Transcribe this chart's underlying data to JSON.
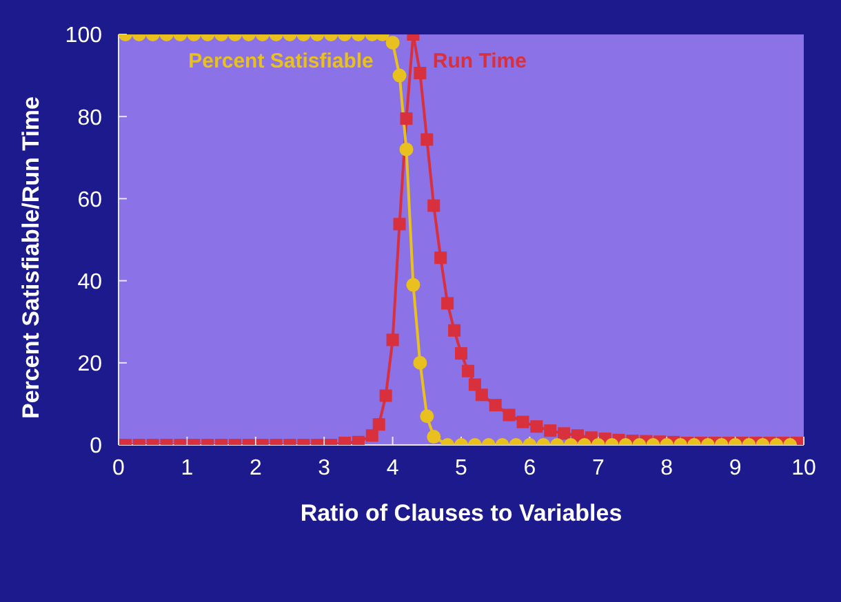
{
  "chart_data": {
    "type": "line",
    "xlabel": "Ratio of Clauses to Variables",
    "ylabel": "Percent Satisfiable/Run Time",
    "xlim": [
      0,
      10
    ],
    "xticks": [
      0,
      1,
      2,
      3,
      4,
      5,
      6,
      7,
      8,
      9,
      10
    ],
    "ylim": [
      0,
      100
    ],
    "yticks": [
      0,
      20,
      40,
      60,
      80,
      100
    ],
    "grid": false,
    "series": [
      {
        "name": "Run Time",
        "color": "#d8303c",
        "marker": "square",
        "x": [
          0.1,
          0.3,
          0.5,
          0.7,
          0.9,
          1.1,
          1.3,
          1.5,
          1.7,
          1.9,
          2.1,
          2.3,
          2.5,
          2.7,
          2.9,
          3.1,
          3.3,
          3.5,
          3.7,
          3.8,
          3.9,
          4.0,
          4.1,
          4.2,
          4.3,
          4.4,
          4.5,
          4.6,
          4.7,
          4.8,
          4.9,
          5.0,
          5.1,
          5.2,
          5.3,
          5.5,
          5.7,
          5.9,
          6.1,
          6.3,
          6.5,
          6.7,
          6.9,
          7.1,
          7.3,
          7.5,
          7.7,
          7.9,
          8.1,
          8.3,
          8.5,
          8.7,
          8.9,
          9.1,
          9.3,
          9.5,
          9.7,
          9.9
        ],
        "values": [
          0,
          0,
          0,
          0,
          0,
          0,
          0,
          0,
          0,
          0,
          0,
          0,
          0,
          0,
          0,
          0,
          0.5,
          0.7,
          2.3,
          5,
          12,
          25.6,
          53.8,
          79.5,
          100,
          90.6,
          74.4,
          58.3,
          45.6,
          34.5,
          27.9,
          22.3,
          18,
          14.7,
          12.2,
          9.7,
          7.3,
          5.6,
          4.5,
          3.5,
          2.8,
          2.3,
          1.8,
          1.5,
          1.2,
          1.0,
          0.9,
          0.8,
          0.7,
          0.5,
          0.5,
          0.5,
          0.5,
          0.5,
          0.5,
          0.5,
          0.5,
          0.5
        ]
      },
      {
        "name": "Percent Satisfiable",
        "color": "#e8c020",
        "marker": "circle",
        "x": [
          0.1,
          0.3,
          0.5,
          0.7,
          0.9,
          1.1,
          1.3,
          1.5,
          1.7,
          1.9,
          2.1,
          2.3,
          2.5,
          2.7,
          2.9,
          3.1,
          3.3,
          3.5,
          3.7,
          3.85,
          4.0,
          4.1,
          4.2,
          4.3,
          4.4,
          4.5,
          4.6,
          4.8,
          5.0,
          5.2,
          5.4,
          5.6,
          5.8,
          6.0,
          6.2,
          6.4,
          6.6,
          6.8,
          7.0,
          7.2,
          7.4,
          7.6,
          7.8,
          8.0,
          8.2,
          8.4,
          8.6,
          8.8,
          9.0,
          9.2,
          9.4,
          9.6,
          9.8
        ],
        "values": [
          100,
          100,
          100,
          100,
          100,
          100,
          100,
          100,
          100,
          100,
          100,
          100,
          100,
          100,
          100,
          100,
          100,
          100,
          100,
          100,
          98,
          90,
          72,
          39,
          20,
          7,
          2,
          0,
          0,
          0,
          0,
          0,
          0,
          0,
          0,
          0,
          0,
          0,
          0,
          0,
          0,
          0,
          0,
          0,
          0,
          0,
          0,
          0,
          0,
          0,
          0,
          0,
          0
        ]
      }
    ]
  }
}
